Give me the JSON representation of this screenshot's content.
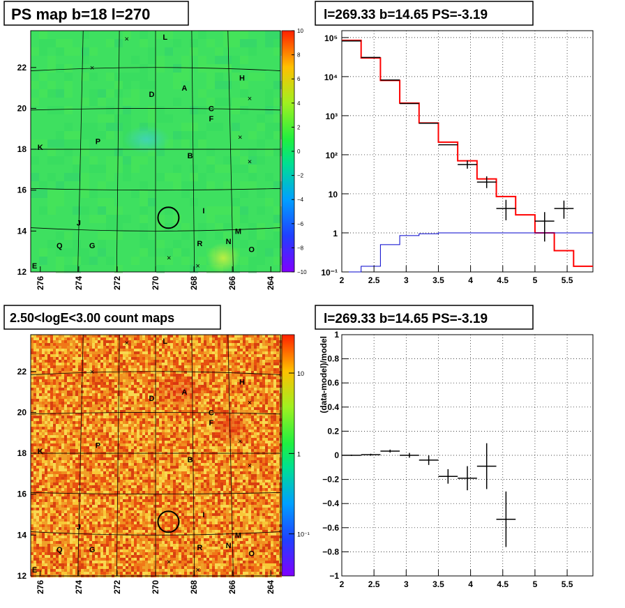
{
  "panels": {
    "map1_title": "PS map b=18 l=270",
    "map2_title": "2.50<logE<3.00 count maps",
    "spec_title": "l=269.33 b=14.65 PS=-3.19",
    "resid_title": "l=269.33 b=14.65 PS=-3.19"
  },
  "colors": {
    "data": "#000000",
    "model": "#ff0000",
    "background": "#0000cc"
  },
  "chart_data": [
    {
      "type": "heatmap",
      "title": "PS map b=18 l=270",
      "xlabel": "",
      "ylabel": "",
      "x_ticks": [
        "276",
        "274",
        "272",
        "270",
        "268",
        "266",
        "264"
      ],
      "y_ticks": [
        "12",
        "14",
        "16",
        "18",
        "20",
        "22"
      ],
      "xlim": [
        276.5,
        263.5
      ],
      "ylim": [
        12,
        23.8
      ],
      "colorbar": {
        "min": -10,
        "max": 10,
        "ticks": [
          "10",
          "8",
          "6",
          "4",
          "2",
          "0",
          "−2",
          "−4",
          "−6",
          "−8",
          "−10"
        ]
      },
      "sources": [
        {
          "name": "L",
          "l": 269.5,
          "b": 23.5
        },
        {
          "name": "A",
          "l": 268.5,
          "b": 21.0
        },
        {
          "name": "D",
          "l": 270.2,
          "b": 20.7
        },
        {
          "name": "H",
          "l": 265.5,
          "b": 21.5
        },
        {
          "name": "C",
          "l": 267.1,
          "b": 20.0
        },
        {
          "name": "F",
          "l": 267.1,
          "b": 19.5
        },
        {
          "name": "K",
          "l": 276.0,
          "b": 18.1
        },
        {
          "name": "P",
          "l": 273.0,
          "b": 18.4
        },
        {
          "name": "B",
          "l": 268.2,
          "b": 17.7
        },
        {
          "name": "I",
          "l": 267.5,
          "b": 15.0
        },
        {
          "name": "J",
          "l": 274.0,
          "b": 14.4
        },
        {
          "name": "M",
          "l": 265.7,
          "b": 14.0
        },
        {
          "name": "Q",
          "l": 275.0,
          "b": 13.3
        },
        {
          "name": "G",
          "l": 273.3,
          "b": 13.3
        },
        {
          "name": "R",
          "l": 267.7,
          "b": 13.4
        },
        {
          "name": "N",
          "l": 266.2,
          "b": 13.5
        },
        {
          "name": "O",
          "l": 265.0,
          "b": 13.1
        },
        {
          "name": "E",
          "l": 276.3,
          "b": 12.3
        }
      ],
      "circle": {
        "l": 269.33,
        "b": 14.65
      }
    },
    {
      "type": "heatmap",
      "title": "2.50<logE<3.00 count maps",
      "xlabel": "",
      "ylabel": "",
      "x_ticks": [
        "276",
        "274",
        "272",
        "270",
        "268",
        "266",
        "264"
      ],
      "y_ticks": [
        "12",
        "14",
        "16",
        "18",
        "20",
        "22"
      ],
      "xlim": [
        276.5,
        263.5
      ],
      "ylim": [
        12,
        23.8
      ],
      "colorbar": {
        "log": true,
        "min": 0.03,
        "max": 30,
        "ticks": [
          "10",
          "1",
          "10⁻¹"
        ]
      }
    },
    {
      "type": "line",
      "title": "l=269.33 b=14.65 PS=-3.19",
      "xlabel": "",
      "ylabel": "",
      "log_y": true,
      "xlim": [
        2,
        5.9
      ],
      "ylim": [
        0.1,
        150000
      ],
      "x_ticks": [
        "2",
        "2.5",
        "3",
        "3.5",
        "4",
        "4.5",
        "5",
        "5.5"
      ],
      "y_ticks": [
        "10⁻¹",
        "1",
        "10",
        "10²",
        "10³",
        "10⁴",
        "10⁵"
      ],
      "grid": true,
      "bin_edges": [
        2.0,
        2.3,
        2.6,
        2.9,
        3.2,
        3.5,
        3.8,
        4.1,
        4.4,
        4.7,
        5.0,
        5.3,
        5.6,
        5.9
      ],
      "series": [
        {
          "style": "step",
          "color": "#ff0000",
          "values": [
            85000,
            30000,
            8000,
            2100,
            650,
            210,
            70,
            24,
            8.5,
            2.9,
            1.0,
            0.35,
            0.14
          ]
        },
        {
          "style": "step",
          "color": "#0000cc",
          "values": [
            0.1,
            0.14,
            0.5,
            0.85,
            0.95,
            1,
            1,
            1,
            1,
            1,
            1,
            1,
            1
          ]
        },
        {
          "style": "errorbar",
          "color": "#000000",
          "x": [
            2.15,
            2.45,
            2.75,
            3.05,
            3.35,
            3.65,
            3.95,
            4.25,
            4.55,
            5.15,
            5.45
          ],
          "y": [
            82000,
            31000,
            8200,
            2050,
            640,
            180,
            56,
            20,
            4.2,
            2.0,
            4.2
          ],
          "err_hi": [
            0,
            0,
            0,
            0,
            0,
            0,
            15,
            8,
            2.8,
            1.4,
            2.5
          ],
          "err_lo": [
            0,
            0,
            0,
            0,
            0,
            0,
            12,
            6,
            2.1,
            1.4,
            1.9
          ]
        }
      ]
    },
    {
      "type": "scatter",
      "title": "l=269.33 b=14.65 PS=-3.19",
      "xlabel": "",
      "ylabel": "(data-model)/model",
      "xlim": [
        2,
        5.9
      ],
      "ylim": [
        -1,
        1
      ],
      "x_ticks": [
        "2",
        "2.5",
        "3",
        "3.5",
        "4",
        "4.5",
        "5",
        "5.5"
      ],
      "y_ticks": [
        "−1",
        "−0.8",
        "−0.6",
        "−0.4",
        "−0.2",
        "0",
        "0.2",
        "0.4",
        "0.6",
        "0.8",
        "1"
      ],
      "grid": true,
      "series": [
        {
          "style": "errorbar",
          "color": "#000000",
          "x": [
            2.15,
            2.45,
            2.75,
            3.05,
            3.35,
            3.65,
            3.95,
            4.25,
            4.55
          ],
          "y": [
            0.0,
            0.005,
            0.035,
            0.0,
            -0.04,
            -0.175,
            -0.19,
            -0.09,
            -0.53
          ],
          "err": [
            0.005,
            0.008,
            0.012,
            0.02,
            0.04,
            0.06,
            0.1,
            0.19,
            0.23
          ]
        }
      ]
    }
  ]
}
